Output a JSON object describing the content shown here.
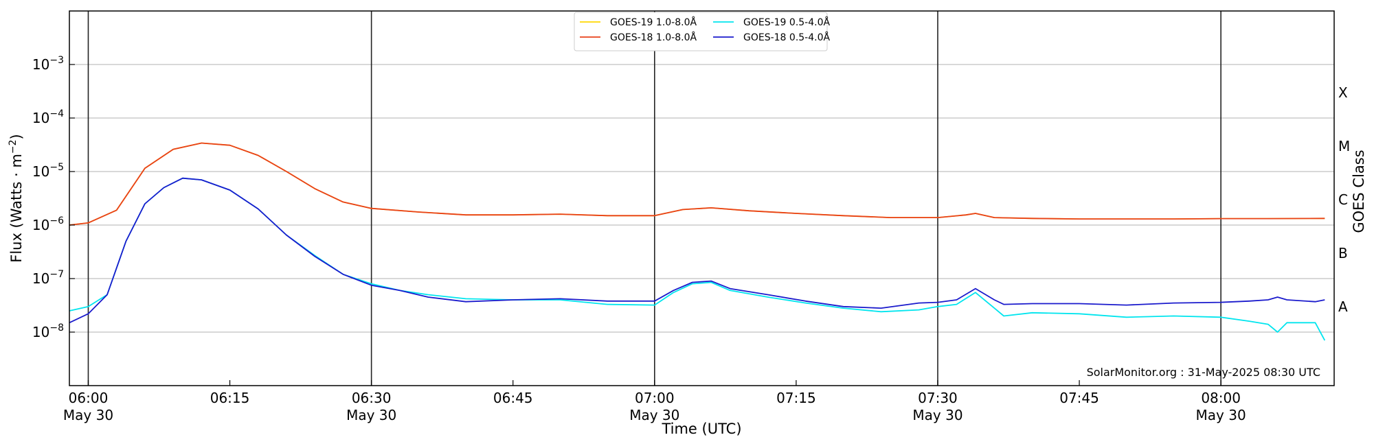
{
  "chart_data": {
    "type": "line",
    "title": "",
    "xlabel": "Time (UTC)",
    "ylabel": "Flux (Watts · m",
    "ylabel_superscript": "−2",
    "ylabel_close": ")",
    "y2label": "GOES Class",
    "yscale": "log",
    "xlim": [
      "05:58",
      "08:12"
    ],
    "ylim": [
      1e-09,
      0.01
    ],
    "grid": "horizontal",
    "legend_position": "top-center",
    "y_ticks": [
      {
        "value": 1e-08,
        "base": "10",
        "exp": "−8"
      },
      {
        "value": 1e-07,
        "base": "10",
        "exp": "−7"
      },
      {
        "value": 1e-06,
        "base": "10",
        "exp": "−6"
      },
      {
        "value": 1e-05,
        "base": "10",
        "exp": "−5"
      },
      {
        "value": 0.0001,
        "base": "10",
        "exp": "−4"
      },
      {
        "value": 0.001,
        "base": "10",
        "exp": "−3"
      }
    ],
    "x_ticks": [
      {
        "time": "06:00",
        "label": "06:00",
        "sublabel": "May 30",
        "major": true
      },
      {
        "time": "06:15",
        "label": "06:15",
        "sublabel": "",
        "major": false
      },
      {
        "time": "06:30",
        "label": "06:30",
        "sublabel": "May 30",
        "major": true
      },
      {
        "time": "06:45",
        "label": "06:45",
        "sublabel": "",
        "major": false
      },
      {
        "time": "07:00",
        "label": "07:00",
        "sublabel": "May 30",
        "major": true
      },
      {
        "time": "07:15",
        "label": "07:15",
        "sublabel": "",
        "major": false
      },
      {
        "time": "07:30",
        "label": "07:30",
        "sublabel": "May 30",
        "major": true
      },
      {
        "time": "07:45",
        "label": "07:45",
        "sublabel": "",
        "major": false
      },
      {
        "time": "08:00",
        "label": "08:00",
        "sublabel": "May 30",
        "major": true
      }
    ],
    "classes": [
      {
        "label": "A",
        "value": 3e-08
      },
      {
        "label": "B",
        "value": 3e-07
      },
      {
        "label": "C",
        "value": 3e-06
      },
      {
        "label": "M",
        "value": 3e-05
      },
      {
        "label": "X",
        "value": 0.0003
      }
    ],
    "watermark": "SolarMonitor.org : 31-May-2025 08:30 UTC",
    "series": [
      {
        "name": "GOES-19 1.0-8.0Å",
        "color": "#ffd700",
        "x": [
          "05:58",
          "06:00",
          "06:03",
          "06:06",
          "06:09",
          "06:12",
          "06:15",
          "06:18",
          "06:21",
          "06:24",
          "06:27",
          "06:30",
          "06:35",
          "06:40",
          "06:45",
          "06:50",
          "06:55",
          "07:00",
          "07:03",
          "07:06",
          "07:10",
          "07:15",
          "07:20",
          "07:25",
          "07:30",
          "07:33",
          "07:34",
          "07:36",
          "07:40",
          "07:45",
          "07:50",
          "07:55",
          "08:00",
          "08:05",
          "08:11"
        ],
        "values": [
          1e-06,
          1.1e-06,
          1.9e-06,
          1.15e-05,
          2.6e-05,
          3.4e-05,
          3.1e-05,
          2e-05,
          1e-05,
          4.8e-06,
          2.7e-06,
          2.05e-06,
          1.75e-06,
          1.55e-06,
          1.55e-06,
          1.6e-06,
          1.5e-06,
          1.5e-06,
          1.95e-06,
          2.1e-06,
          1.85e-06,
          1.65e-06,
          1.5e-06,
          1.38e-06,
          1.38e-06,
          1.55e-06,
          1.65e-06,
          1.38e-06,
          1.33e-06,
          1.3e-06,
          1.3e-06,
          1.3e-06,
          1.32e-06,
          1.32e-06,
          1.33e-06
        ]
      },
      {
        "name": "GOES-18 1.0-8.0Å",
        "color": "#e8401a",
        "x": [
          "05:58",
          "06:00",
          "06:03",
          "06:06",
          "06:09",
          "06:12",
          "06:15",
          "06:18",
          "06:21",
          "06:24",
          "06:27",
          "06:30",
          "06:35",
          "06:40",
          "06:45",
          "06:50",
          "06:55",
          "07:00",
          "07:03",
          "07:06",
          "07:10",
          "07:15",
          "07:20",
          "07:25",
          "07:30",
          "07:33",
          "07:34",
          "07:36",
          "07:40",
          "07:45",
          "07:50",
          "07:55",
          "08:00",
          "08:05",
          "08:11"
        ],
        "values": [
          1e-06,
          1.1e-06,
          1.9e-06,
          1.15e-05,
          2.6e-05,
          3.4e-05,
          3.1e-05,
          2e-05,
          1e-05,
          4.8e-06,
          2.7e-06,
          2.05e-06,
          1.75e-06,
          1.55e-06,
          1.55e-06,
          1.6e-06,
          1.5e-06,
          1.5e-06,
          1.95e-06,
          2.1e-06,
          1.85e-06,
          1.65e-06,
          1.5e-06,
          1.38e-06,
          1.38e-06,
          1.55e-06,
          1.65e-06,
          1.38e-06,
          1.33e-06,
          1.3e-06,
          1.3e-06,
          1.3e-06,
          1.32e-06,
          1.32e-06,
          1.33e-06
        ]
      },
      {
        "name": "GOES-19 0.5-4.0Å",
        "color": "#00e5ee",
        "x": [
          "05:58",
          "06:00",
          "06:02",
          "06:04",
          "06:06",
          "06:08",
          "06:10",
          "06:12",
          "06:15",
          "06:18",
          "06:21",
          "06:24",
          "06:27",
          "06:30",
          "06:33",
          "06:36",
          "06:40",
          "06:45",
          "06:50",
          "06:55",
          "07:00",
          "07:02",
          "07:04",
          "07:06",
          "07:08",
          "07:12",
          "07:16",
          "07:20",
          "07:24",
          "07:28",
          "07:30",
          "07:32",
          "07:34",
          "07:36",
          "07:37",
          "07:40",
          "07:45",
          "07:50",
          "07:55",
          "08:00",
          "08:03",
          "08:05",
          "08:06",
          "08:07",
          "08:10",
          "08:11"
        ],
        "values": [
          2.5e-08,
          3e-08,
          5e-08,
          5e-07,
          2.5e-06,
          5e-06,
          7.5e-06,
          7e-06,
          4.5e-06,
          2e-06,
          6.5e-07,
          2.7e-07,
          1.2e-07,
          8e-08,
          6e-08,
          5e-08,
          4.2e-08,
          4e-08,
          4e-08,
          3.3e-08,
          3.2e-08,
          5.5e-08,
          8e-08,
          8.5e-08,
          6e-08,
          4.5e-08,
          3.5e-08,
          2.8e-08,
          2.4e-08,
          2.6e-08,
          3e-08,
          3.3e-08,
          5.5e-08,
          2.8e-08,
          2e-08,
          2.3e-08,
          2.2e-08,
          1.9e-08,
          2e-08,
          1.9e-08,
          1.6e-08,
          1.4e-08,
          1e-08,
          1.5e-08,
          1.5e-08,
          7e-09
        ]
      },
      {
        "name": "GOES-18 0.5-4.0Å",
        "color": "#1a1acc",
        "x": [
          "05:58",
          "06:00",
          "06:02",
          "06:04",
          "06:06",
          "06:08",
          "06:10",
          "06:12",
          "06:15",
          "06:18",
          "06:21",
          "06:24",
          "06:27",
          "06:30",
          "06:33",
          "06:36",
          "06:40",
          "06:45",
          "06:50",
          "06:55",
          "07:00",
          "07:02",
          "07:04",
          "07:06",
          "07:08",
          "07:12",
          "07:16",
          "07:20",
          "07:24",
          "07:28",
          "07:30",
          "07:32",
          "07:34",
          "07:36",
          "07:37",
          "07:40",
          "07:45",
          "07:50",
          "07:55",
          "08:00",
          "08:03",
          "08:05",
          "08:06",
          "08:07",
          "08:10",
          "08:11"
        ],
        "values": [
          1.5e-08,
          2.2e-08,
          5e-08,
          5e-07,
          2.5e-06,
          5e-06,
          7.5e-06,
          7e-06,
          4.5e-06,
          2e-06,
          6.5e-07,
          2.6e-07,
          1.2e-07,
          7.5e-08,
          6e-08,
          4.5e-08,
          3.7e-08,
          4e-08,
          4.2e-08,
          3.8e-08,
          3.8e-08,
          6e-08,
          8.5e-08,
          9e-08,
          6.5e-08,
          5e-08,
          3.8e-08,
          3e-08,
          2.8e-08,
          3.5e-08,
          3.6e-08,
          4e-08,
          6.5e-08,
          4e-08,
          3.3e-08,
          3.4e-08,
          3.4e-08,
          3.2e-08,
          3.5e-08,
          3.6e-08,
          3.8e-08,
          4e-08,
          4.5e-08,
          4e-08,
          3.7e-08,
          4e-08
        ]
      }
    ]
  }
}
